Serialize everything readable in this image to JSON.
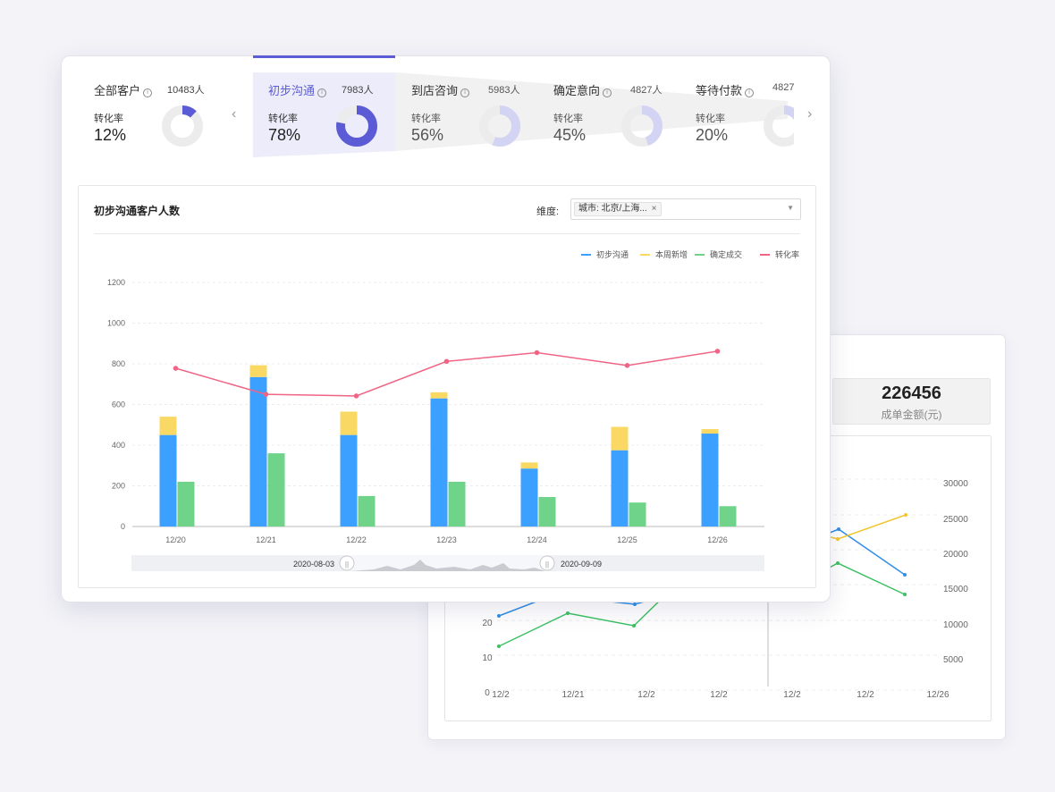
{
  "back_card": {
    "stat_value": "226456",
    "stat_label": "成单金额(元)",
    "chart_data": {
      "type": "line",
      "x_tick_labels": [
        "12/2",
        "12/21",
        "12/2",
        "12/2",
        "12/2",
        "12/2",
        "12/26"
      ],
      "y_left_ticks": [
        "0",
        "10",
        "20"
      ],
      "y_right_ticks": [
        "5000",
        "10000",
        "15000",
        "20000",
        "25000",
        "30000"
      ],
      "colors": {
        "blue": "#2f8fe8",
        "yellow": "#f2c530",
        "green": "#3cc163"
      }
    }
  },
  "funnel": {
    "stages": [
      {
        "name": "全部客户",
        "count": "10483人",
        "rate_label": "转化率",
        "rate": "12%",
        "rate_value": 0.12
      },
      {
        "name": "初步沟通",
        "count": "7983人",
        "rate_label": "转化率",
        "rate": "78%",
        "rate_value": 0.78
      },
      {
        "name": "到店咨询",
        "count": "5983人",
        "rate_label": "转化率",
        "rate": "56%",
        "rate_value": 0.56
      },
      {
        "name": "确定意向",
        "count": "4827人",
        "rate_label": "转化率",
        "rate": "45%",
        "rate_value": 0.45
      },
      {
        "name": "等待付款",
        "count": "4827",
        "rate_label": "转化率",
        "rate": "20%",
        "rate_value": 0.2
      }
    ],
    "active_index": 1,
    "prev_icon": "chevron-left-icon",
    "next_icon": "chevron-right-icon",
    "info_icon": "info-icon"
  },
  "panel": {
    "title": "初步沟通客户人数",
    "dimension_label": "维度:",
    "dimension_tag": "城市: 北京/上海...",
    "tag_close": "×",
    "caret": "▼"
  },
  "colors": {
    "accent": "#5b5bd6",
    "accent_light": "#d3d3f3",
    "donut_track": "#ececec",
    "blue": "#3ba0ff",
    "yellow": "#fad864",
    "green": "#6fd38a",
    "pink": "#f06585"
  },
  "chart_data": {
    "type": "bar",
    "categories": [
      "12/20",
      "12/21",
      "12/22",
      "12/23",
      "12/24",
      "12/25",
      "12/26"
    ],
    "series": [
      {
        "name": "初步沟通",
        "kind": "stacked-bar",
        "color": "#3ba0ff",
        "values": [
          450,
          735,
          450,
          630,
          285,
          375,
          457
        ]
      },
      {
        "name": "本周新增",
        "kind": "stacked-bar",
        "color": "#fad864",
        "values": [
          90,
          58,
          115,
          30,
          30,
          115,
          22
        ]
      },
      {
        "name": "确定成交",
        "kind": "bar",
        "color": "#6fd38a",
        "values": [
          220,
          360,
          150,
          220,
          145,
          118,
          100
        ]
      },
      {
        "name": "转化率",
        "kind": "line",
        "color": "#f06585",
        "values": [
          778,
          650,
          642,
          812,
          855,
          792,
          862
        ]
      }
    ],
    "ylim": [
      0,
      1200
    ],
    "y_ticks": [
      0,
      200,
      400,
      600,
      800,
      1000,
      1200
    ],
    "grid": true,
    "legend_position": "top-right",
    "zoom": {
      "start_label": "2020-08-03",
      "end_label": "2020-09-09"
    }
  }
}
